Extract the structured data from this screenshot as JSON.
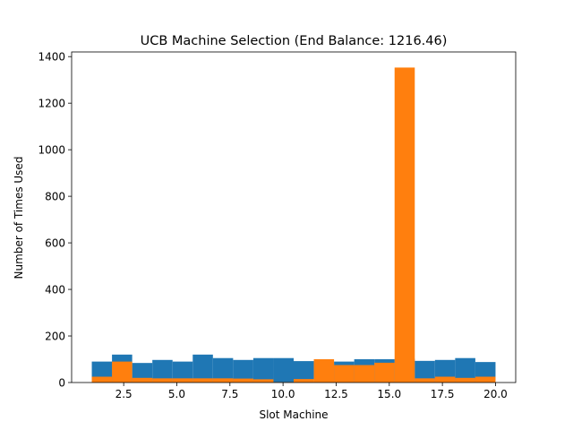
{
  "chart_data": {
    "type": "bar",
    "title": "UCB Machine Selection (End Balance: 1216.46)",
    "xlabel": "Slot Machine",
    "ylabel": "Number of Times Used",
    "xlim": [
      0.05,
      20.95
    ],
    "ylim": [
      0,
      1420
    ],
    "x_ticks": [
      2.5,
      5.0,
      7.5,
      10.0,
      12.5,
      15.0,
      17.5,
      20.0
    ],
    "y_ticks": [
      0,
      200,
      400,
      600,
      800,
      1000,
      1200,
      1400
    ],
    "x_tick_labels": [
      "2.5",
      "5.0",
      "7.5",
      "10.0",
      "12.5",
      "15.0",
      "17.5",
      "20.0"
    ],
    "y_tick_labels": [
      "0",
      "200",
      "400",
      "600",
      "800",
      "1000",
      "1200",
      "1400"
    ],
    "bin_edges": [
      1.0,
      1.95,
      2.9,
      3.85,
      4.8,
      5.75,
      6.7,
      7.65,
      8.6,
      9.55,
      10.5,
      11.45,
      12.4,
      13.35,
      14.3,
      15.25,
      16.2,
      17.15,
      18.1,
      19.05,
      20.0
    ],
    "grid": false,
    "legend": "none",
    "series": [
      {
        "color": "#1f77b4",
        "values": [
          90,
          120,
          84,
          97,
          90,
          120,
          105,
          97,
          105,
          105,
          92,
          0,
          90,
          100,
          100,
          102,
          93,
          97,
          105,
          88
        ]
      },
      {
        "color": "#ff7f0e",
        "values": [
          25,
          90,
          20,
          18,
          18,
          18,
          18,
          17,
          14,
          2,
          15,
          100,
          75,
          75,
          85,
          1353,
          18,
          25,
          20,
          25
        ]
      }
    ]
  }
}
